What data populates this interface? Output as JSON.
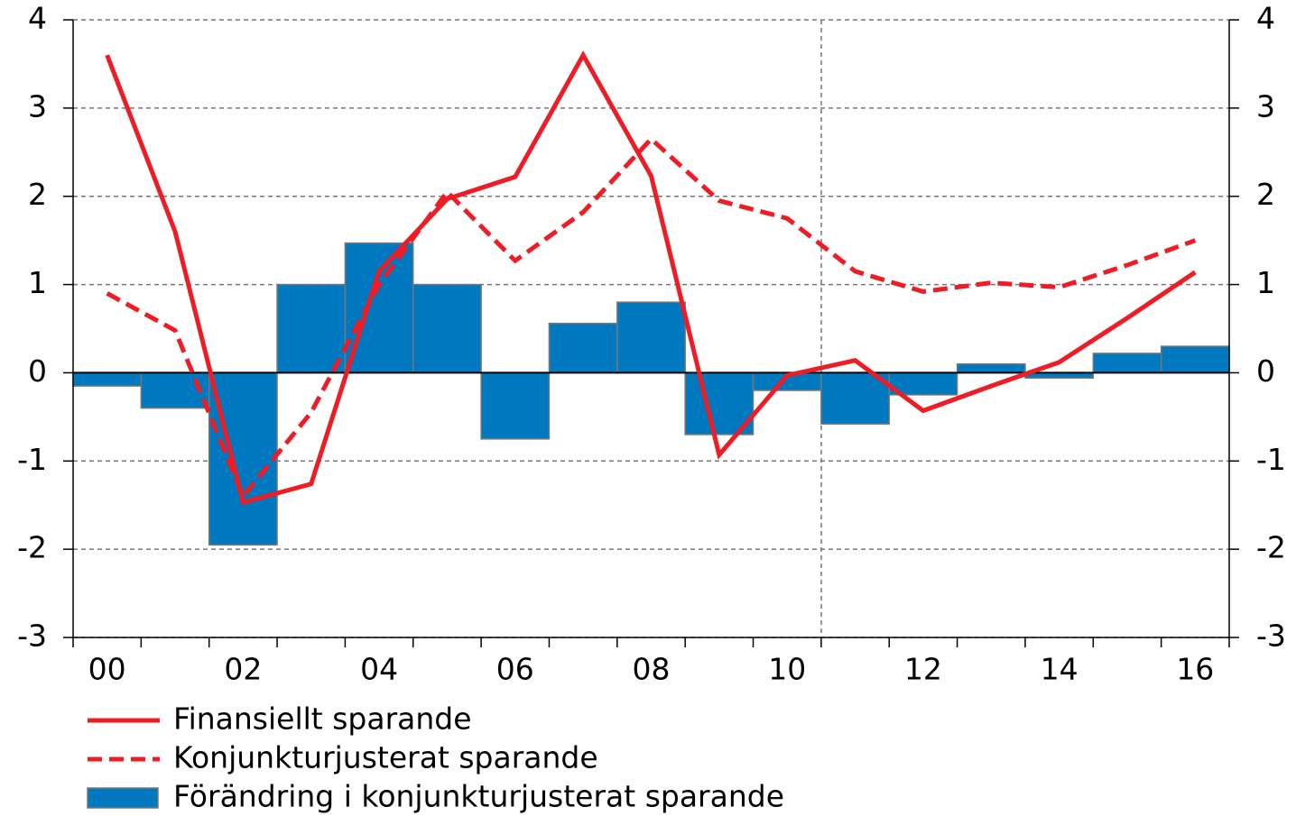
{
  "chart_data": {
    "type": "bar",
    "categories": [
      "00",
      null,
      "02",
      null,
      "04",
      null,
      "06",
      null,
      "08",
      null,
      "10",
      null,
      "12",
      null,
      "14",
      null,
      "16"
    ],
    "series": [
      {
        "name": "Finansiellt sparande",
        "type": "line",
        "style": "solid",
        "color": "#ee1c25",
        "values": [
          3.6,
          1.6,
          -1.47,
          -1.26,
          1.15,
          1.97,
          2.22,
          3.6,
          2.23,
          -0.93,
          -0.03,
          0.14,
          -0.43,
          -0.15,
          0.12,
          0.62,
          1.14
        ]
      },
      {
        "name": "Konjunkturjusterat sparande",
        "type": "line",
        "style": "dashed",
        "color": "#ee1c25",
        "values": [
          0.9,
          0.48,
          -1.4,
          -0.45,
          1.0,
          2.05,
          1.27,
          1.82,
          2.65,
          1.95,
          1.75,
          1.15,
          0.92,
          1.02,
          0.97,
          1.22,
          1.5
        ]
      },
      {
        "name": "Förändring i konjunkturjusterat sparande",
        "type": "bar",
        "color": "#0079c1",
        "values": [
          -0.15,
          -0.4,
          -1.95,
          1.0,
          1.47,
          1.0,
          -0.75,
          0.56,
          0.8,
          -0.7,
          -0.2,
          -0.58,
          -0.25,
          0.1,
          -0.06,
          0.22,
          0.3
        ]
      }
    ],
    "ylim": [
      -3,
      4
    ],
    "yticks": [
      -3,
      -2,
      -1,
      0,
      1,
      2,
      3,
      4
    ],
    "y2lim": [
      -3,
      4
    ],
    "y2ticks": [
      -3,
      -2,
      -1,
      0,
      1,
      2,
      3,
      4
    ],
    "grid": true,
    "legend": "bottom"
  }
}
